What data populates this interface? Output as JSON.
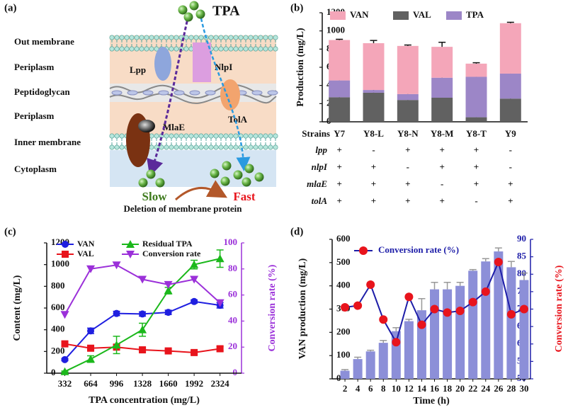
{
  "panels": [
    "(a)",
    "(b)",
    "(c)",
    "(d)"
  ],
  "diagram": {
    "molecule": "TPA",
    "layers": [
      "Out membrane",
      "Periplasm",
      "Peptidoglycan",
      "Periplasm",
      "Inner membrane",
      "Cytoplasm"
    ],
    "proteins": [
      "Lpp",
      "NlpI",
      "TolA",
      "MlaE"
    ],
    "slow": "Slow",
    "fast": "Fast",
    "caption": "Deletion of membrane protein"
  },
  "chart_data": [
    {
      "type": "stacked_bar",
      "ylabel": "Production (mg/L)",
      "categories": [
        "Y7",
        "Y8-L",
        "Y8-N",
        "Y8-M",
        "Y8-T",
        "Y9"
      ],
      "series": [
        {
          "name": "VAN",
          "color": "#f4a6b9",
          "values": [
            445,
            515,
            530,
            340,
            145,
            555
          ],
          "errors": [
            8,
            30,
            10,
            50,
            10,
            10
          ]
        },
        {
          "name": "VAL",
          "color": "#616161",
          "values": [
            270,
            320,
            240,
            265,
            50,
            255
          ],
          "errors": [
            25,
            40,
            30,
            20,
            15,
            30
          ]
        },
        {
          "name": "TPA",
          "color": "#9c86c7",
          "values": [
            185,
            30,
            65,
            220,
            445,
            275
          ],
          "errors": [
            15,
            40,
            20,
            50,
            30,
            60
          ]
        }
      ],
      "ylim": [
        0,
        1200
      ],
      "yticks": [
        0,
        200,
        400,
        600,
        800,
        1000,
        1200
      ],
      "table": {
        "header": "Strains",
        "rows": [
          {
            "gene": "lpp",
            "signs": [
              "+",
              "-",
              "+",
              "+",
              "+",
              "-"
            ]
          },
          {
            "gene": "nlpI",
            "signs": [
              "+",
              "+",
              "-",
              "+",
              "+",
              "-"
            ]
          },
          {
            "gene": "mlaE",
            "signs": [
              "+",
              "+",
              "+",
              "-",
              "+",
              "+"
            ]
          },
          {
            "gene": "tolA",
            "signs": [
              "+",
              "+",
              "+",
              "+",
              "-",
              "+"
            ]
          }
        ]
      }
    },
    {
      "type": "line",
      "xlabel": "TPA concentration (mg/L)",
      "ylabel": "Content (mg/L)",
      "y2label": "Conversion rate (%)",
      "x": [
        332,
        664,
        996,
        1328,
        1660,
        1992,
        2324
      ],
      "series": [
        {
          "name": "VAN",
          "color": "#1f1fe0",
          "marker": "circle",
          "values": [
            125,
            390,
            550,
            545,
            560,
            660,
            625
          ],
          "errors": [
            10,
            25,
            20,
            20,
            20,
            15,
            25
          ]
        },
        {
          "name": "VAL",
          "color": "#e8141c",
          "marker": "square",
          "values": [
            270,
            230,
            240,
            215,
            205,
            190,
            225
          ],
          "errors": [
            20,
            15,
            15,
            15,
            15,
            15,
            20
          ]
        },
        {
          "name": "Residual TPA",
          "color": "#1bb81b",
          "marker": "triangle-up",
          "values": [
            15,
            130,
            260,
            400,
            760,
            1000,
            1055
          ],
          "errors": [
            5,
            30,
            80,
            60,
            30,
            40,
            80
          ]
        },
        {
          "name": "Conversion rate",
          "color": "#9b30d9",
          "marker": "triangle-down",
          "axis": "y2",
          "values": [
            45,
            80,
            83,
            72,
            68,
            72,
            54
          ]
        }
      ],
      "xlim": [
        100,
        2600
      ],
      "xticks": [
        332,
        664,
        996,
        1328,
        1660,
        1992,
        2324
      ],
      "ylim": [
        0,
        1200
      ],
      "yticks": [
        0,
        200,
        400,
        600,
        800,
        1000,
        1200
      ],
      "y2lim": [
        0,
        100
      ],
      "y2ticks": [
        0,
        20,
        40,
        60,
        80,
        100
      ],
      "y2color": "#9b30d9"
    },
    {
      "type": "bar_line",
      "xlabel": "Time (h)",
      "ylabel": "VAN production (mg/L)",
      "y2label": "Conversion rate (%)",
      "x": [
        2,
        4,
        6,
        8,
        10,
        12,
        14,
        16,
        18,
        20,
        22,
        24,
        26,
        28,
        30
      ],
      "series": [
        {
          "color": "#8c8fd8",
          "values": [
            35,
            85,
            118,
            155,
            205,
            248,
            295,
            385,
            385,
            400,
            465,
            505,
            548,
            480,
            425
          ],
          "errors": [
            5,
            8,
            5,
            10,
            15,
            8,
            50,
            30,
            30,
            15,
            5,
            12,
            15,
            25,
            30
          ]
        },
        {
          "name": "Conversion rate (%)",
          "color": "#1d1da8",
          "marker_color": "#e8141c",
          "axis": "y2",
          "values": [
            70.5,
            71,
            77,
            67,
            60.5,
            73.5,
            65.5,
            70,
            69,
            69.5,
            72,
            75,
            83.5,
            68.5,
            70
          ]
        }
      ],
      "xlim": [
        0,
        31
      ],
      "xticks": [
        2,
        4,
        6,
        8,
        10,
        12,
        14,
        16,
        18,
        20,
        22,
        24,
        26,
        28,
        30
      ],
      "ylim": [
        0,
        600
      ],
      "yticks": [
        0,
        100,
        200,
        300,
        400,
        500,
        600
      ],
      "y2lim": [
        50,
        90
      ],
      "y2ticks": [
        50,
        55,
        60,
        65,
        70,
        75,
        80,
        85,
        90
      ],
      "y2color": "#1d1da8",
      "y2labelcolor": "#e8141c"
    }
  ]
}
